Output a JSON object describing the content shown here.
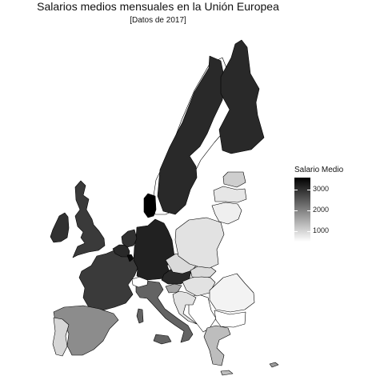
{
  "title": "Salarios medios mensuales en la Unión Europea",
  "subtitle": "[Datos de 2017]",
  "legend": {
    "title": "Salario Medio",
    "ticks": [
      "3000",
      "2000",
      "1000"
    ],
    "range": [
      500,
      3600
    ],
    "colors": {
      "low": "#ffffff",
      "high": "#000000"
    }
  },
  "regions": [
    {
      "key": "ireland",
      "value": 3000
    },
    {
      "key": "uk",
      "value": 2900
    },
    {
      "key": "france",
      "value": 2900
    },
    {
      "key": "spain",
      "value": 1900
    },
    {
      "key": "portugal",
      "value": 1000
    },
    {
      "key": "belgium",
      "value": 3100
    },
    {
      "key": "netherlands",
      "value": 3000
    },
    {
      "key": "luxembourg",
      "value": 3500
    },
    {
      "key": "germany",
      "value": 3200
    },
    {
      "key": "denmark",
      "value": 4100
    },
    {
      "key": "austria",
      "value": 3100
    },
    {
      "key": "italy",
      "value": 2400
    },
    {
      "key": "switzerland",
      "value": 500
    },
    {
      "key": "norway",
      "value": 500
    },
    {
      "key": "sweden",
      "value": 3100
    },
    {
      "key": "finland",
      "value": 3100
    },
    {
      "key": "estonia",
      "value": 1100
    },
    {
      "key": "latvia",
      "value": 800
    },
    {
      "key": "lithuania",
      "value": 700
    },
    {
      "key": "poland",
      "value": 850
    },
    {
      "key": "czechia",
      "value": 950
    },
    {
      "key": "slovakia",
      "value": 950
    },
    {
      "key": "hungary",
      "value": 850
    },
    {
      "key": "slovenia",
      "value": 1600
    },
    {
      "key": "croatia",
      "value": 850
    },
    {
      "key": "romania",
      "value": 650
    },
    {
      "key": "bulgaria",
      "value": 500
    },
    {
      "key": "greece",
      "value": 1300
    },
    {
      "key": "cyprus",
      "value": 1700
    },
    {
      "key": "balkans",
      "value": 500
    }
  ]
}
